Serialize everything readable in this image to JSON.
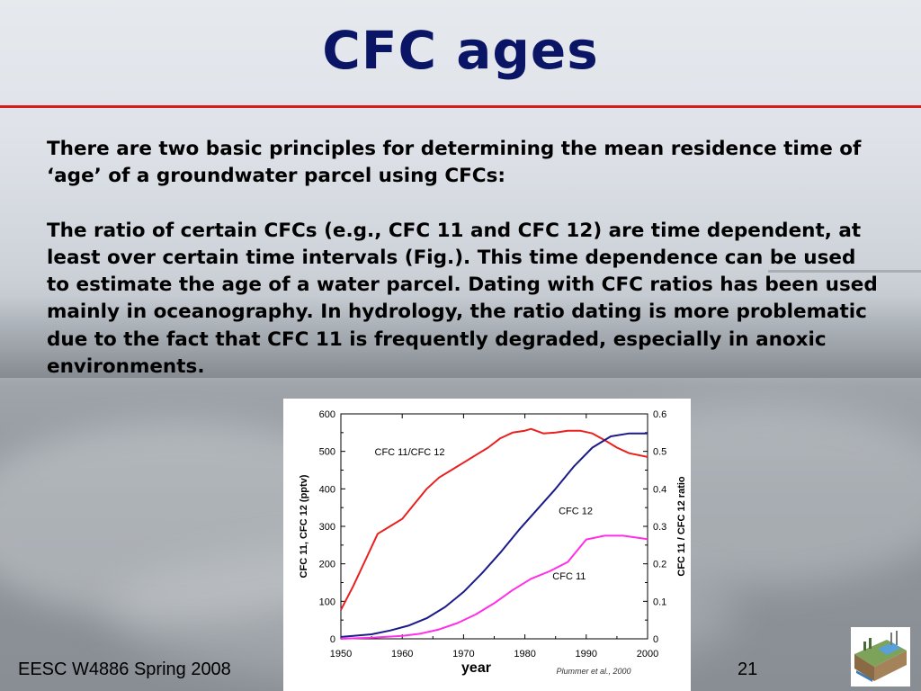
{
  "slide": {
    "title": "CFC ages",
    "paragraphs": [
      "There are two basic principles for determining the mean residence time of ‘age’ of a groundwater parcel using CFCs:",
      "The ratio of certain CFCs (e.g., CFC 11 and CFC 12) are time dependent, at least over certain time intervals (Fig.). This time dependence can be used to estimate the age of a water parcel. Dating with CFC ratios has been used mainly in oceanography. In hydrology, the ratio dating is more problematic due to the fact that CFC 11 is frequently degraded, especially in anoxic environments."
    ],
    "footer_left": "EESC W4886 Spring 2008",
    "page_number": "21",
    "accent_color": "#d51d1d",
    "title_color": "#0b1566",
    "logo_icon": "landscape-diagram-icon"
  },
  "chart_data": {
    "type": "line",
    "xlabel": "year",
    "ylabel": "CFC 11, CFC 12 (pptv)",
    "y2label": "CFC 11 / CFC 12 ratio",
    "source": "Plummer et al., 2000",
    "xlim": [
      1950,
      2000
    ],
    "ylim": [
      0,
      600
    ],
    "y2lim": [
      0,
      0.6
    ],
    "xticks": [
      "1950",
      "1960",
      "1970",
      "1980",
      "1990",
      "2000"
    ],
    "yticks": [
      "0",
      "100",
      "200",
      "300",
      "400",
      "500",
      "600"
    ],
    "y2ticks": [
      "0",
      "0.1",
      "0.2",
      "0.3",
      "0.4",
      "0.5",
      "0.6"
    ],
    "series": [
      {
        "name": "CFC 11/CFC 12",
        "axis": "right",
        "color": "#e8201e",
        "x": [
          1950,
          1952,
          1954,
          1956,
          1958,
          1960,
          1962,
          1964,
          1966,
          1968,
          1970,
          1972,
          1974,
          1976,
          1978,
          1980,
          1981,
          1983,
          1985,
          1987,
          1989,
          1991,
          1993,
          1995,
          1997,
          2000
        ],
        "y": [
          0.077,
          0.14,
          0.21,
          0.28,
          0.3,
          0.32,
          0.36,
          0.4,
          0.43,
          0.45,
          0.47,
          0.49,
          0.51,
          0.535,
          0.55,
          0.555,
          0.56,
          0.548,
          0.55,
          0.555,
          0.555,
          0.548,
          0.53,
          0.51,
          0.495,
          0.485
        ]
      },
      {
        "name": "CFC 12",
        "axis": "left",
        "color": "#1a1a8a",
        "x": [
          1950,
          1955,
          1958,
          1961,
          1964,
          1967,
          1970,
          1973,
          1976,
          1979,
          1982,
          1985,
          1988,
          1991,
          1994,
          1997,
          2000
        ],
        "y": [
          5,
          12,
          22,
          35,
          55,
          85,
          125,
          175,
          230,
          290,
          345,
          400,
          460,
          510,
          540,
          548,
          548
        ]
      },
      {
        "name": "CFC 11",
        "axis": "left",
        "color": "#ff2ee8",
        "x": [
          1950,
          1955,
          1960,
          1963,
          1966,
          1969,
          1972,
          1975,
          1978,
          1981,
          1984,
          1987,
          1990,
          1993,
          1996,
          2000
        ],
        "y": [
          0,
          3,
          8,
          14,
          25,
          42,
          65,
          95,
          130,
          160,
          180,
          205,
          265,
          275,
          275,
          266
        ]
      }
    ],
    "annotations": [
      {
        "text": "CFC 11/CFC 12",
        "x": 1955.5,
        "y": 490
      },
      {
        "text": "CFC 12",
        "x": 1985.5,
        "y": 332
      },
      {
        "text": "CFC 11",
        "x": 1984.5,
        "y": 158
      }
    ]
  }
}
